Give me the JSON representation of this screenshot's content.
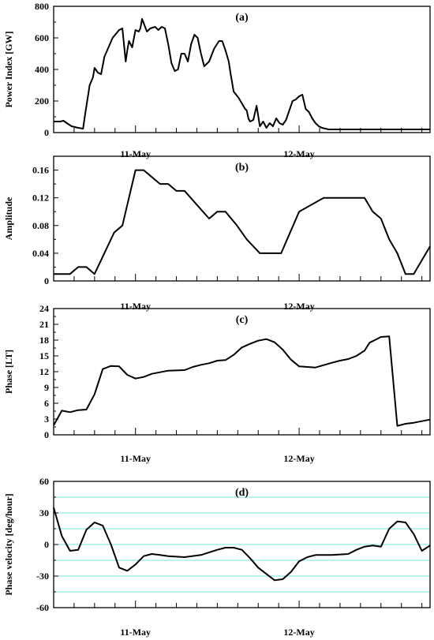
{
  "chart_data": [
    {
      "panel": "(a)",
      "type": "line",
      "ylabel": "Power Index [GW]",
      "ylim": [
        0,
        800
      ],
      "yticks": [
        0,
        200,
        400,
        600,
        800
      ],
      "xlim": [
        0,
        2.3
      ],
      "xticks": [
        {
          "x": 0.5,
          "label": "11-May"
        },
        {
          "x": 1.5,
          "label": "12-May"
        }
      ],
      "grid": false,
      "colors": {
        "line": "#000000",
        "frame": "#000000"
      },
      "series": [
        {
          "x": [
            0,
            0.04,
            0.06,
            0.08,
            0.11,
            0.15,
            0.18,
            0.19,
            0.22,
            0.24,
            0.25,
            0.27,
            0.29,
            0.31,
            0.36,
            0.4,
            0.42,
            0.44,
            0.45,
            0.46,
            0.48,
            0.5,
            0.52,
            0.53,
            0.54,
            0.57,
            0.59,
            0.62,
            0.64,
            0.66,
            0.68,
            0.7,
            0.72,
            0.74,
            0.76,
            0.78,
            0.8,
            0.82,
            0.84,
            0.86,
            0.88,
            0.9,
            0.92,
            0.95,
            0.98,
            1.01,
            1.03,
            1.05,
            1.07,
            1.08,
            1.1,
            1.13,
            1.17,
            1.18,
            1.19,
            1.2,
            1.22,
            1.24,
            1.26,
            1.28,
            1.3,
            1.32,
            1.34,
            1.36,
            1.38,
            1.4,
            1.42,
            1.44,
            1.46,
            1.48,
            1.5,
            1.52,
            1.54,
            1.56,
            1.58,
            1.6,
            1.62,
            1.64,
            1.66,
            1.68,
            1.7,
            1.71,
            1.72,
            1.74,
            1.76,
            1.8,
            1.9,
            2.0,
            2.1,
            2.2,
            2.3
          ],
          "y": [
            70,
            70,
            75,
            60,
            40,
            30,
            25,
            100,
            300,
            350,
            410,
            380,
            370,
            480,
            600,
            650,
            660,
            450,
            520,
            580,
            540,
            650,
            640,
            660,
            720,
            640,
            660,
            670,
            650,
            670,
            660,
            560,
            440,
            390,
            400,
            500,
            500,
            450,
            560,
            620,
            600,
            500,
            420,
            450,
            530,
            580,
            580,
            520,
            450,
            380,
            260,
            220,
            150,
            140,
            90,
            70,
            80,
            170,
            40,
            70,
            30,
            60,
            40,
            90,
            60,
            50,
            80,
            140,
            200,
            210,
            230,
            240,
            150,
            130,
            90,
            60,
            40,
            30,
            25,
            20,
            20,
            20,
            20,
            20,
            20,
            20,
            20,
            20,
            20,
            20,
            20
          ]
        }
      ]
    },
    {
      "panel": "(b)",
      "type": "line",
      "ylabel": "Amplitude",
      "ylim": [
        0,
        0.18
      ],
      "yticks": [
        0,
        0.04,
        0.08,
        0.12,
        0.16
      ],
      "ytick_labels": [
        "0",
        "0.04",
        "0.08",
        "0.12",
        "0.16"
      ],
      "xlim": [
        0,
        2.3
      ],
      "xticks": [
        {
          "x": 0.5,
          "label": "11-May"
        },
        {
          "x": 1.5,
          "label": "12-May"
        }
      ],
      "grid": false,
      "colors": {
        "line": "#000000",
        "frame": "#000000"
      },
      "series": [
        {
          "x": [
            0,
            0.1,
            0.15,
            0.2,
            0.25,
            0.37,
            0.42,
            0.5,
            0.55,
            0.65,
            0.7,
            0.75,
            0.8,
            0.95,
            1.0,
            1.05,
            1.12,
            1.18,
            1.26,
            1.39,
            1.5,
            1.65,
            1.8,
            1.9,
            1.95,
            2.0,
            2.05,
            2.1,
            2.15,
            2.2,
            2.3
          ],
          "y": [
            0.01,
            0.01,
            0.02,
            0.02,
            0.01,
            0.07,
            0.08,
            0.16,
            0.16,
            0.14,
            0.14,
            0.13,
            0.13,
            0.09,
            0.1,
            0.1,
            0.08,
            0.06,
            0.04,
            0.04,
            0.1,
            0.12,
            0.12,
            0.12,
            0.1,
            0.09,
            0.06,
            0.04,
            0.01,
            0.01,
            0.05
          ]
        }
      ]
    },
    {
      "panel": "(c)",
      "type": "line",
      "ylabel": "Phase [LT]",
      "ylim": [
        0,
        24
      ],
      "yticks": [
        0,
        3,
        6,
        9,
        12,
        15,
        18,
        21,
        24
      ],
      "xlim": [
        0,
        2.3
      ],
      "xticks": [
        {
          "x": 0.5,
          "label": "11-May"
        },
        {
          "x": 1.5,
          "label": "12-May"
        }
      ],
      "grid": false,
      "colors": {
        "line": "#000000",
        "frame": "#000000"
      },
      "series": [
        {
          "x": [
            0,
            0.05,
            0.1,
            0.15,
            0.2,
            0.25,
            0.3,
            0.35,
            0.4,
            0.45,
            0.5,
            0.55,
            0.6,
            0.7,
            0.8,
            0.85,
            0.9,
            0.95,
            1.0,
            1.05,
            1.1,
            1.15,
            1.2,
            1.25,
            1.3,
            1.35,
            1.4,
            1.45,
            1.5,
            1.6,
            1.7,
            1.75,
            1.8,
            1.85,
            1.9,
            1.93,
            2.0,
            2.05,
            2.1,
            2.15,
            2.2,
            2.3
          ],
          "y": [
            1.8,
            4.6,
            4.3,
            4.7,
            4.8,
            7.7,
            12.5,
            13.1,
            13.0,
            11.4,
            10.7,
            11.0,
            11.6,
            12.2,
            12.3,
            12.9,
            13.3,
            13.6,
            14.1,
            14.2,
            15.2,
            16.6,
            17.3,
            17.9,
            18.2,
            17.6,
            16.2,
            14.3,
            13.0,
            12.8,
            13.7,
            14.1,
            14.4,
            15.0,
            16.0,
            17.5,
            18.6,
            18.7,
            1.7,
            2.1,
            2.3,
            2.9
          ]
        }
      ]
    },
    {
      "panel": "(d)",
      "type": "line",
      "ylabel": "Phase velocity [deg/hour]",
      "ylim": [
        -60,
        60
      ],
      "yticks": [
        -60,
        -30,
        0,
        30,
        60
      ],
      "xlim": [
        0,
        2.3
      ],
      "xticks": [
        {
          "x": 0.5,
          "label": "11-May"
        },
        {
          "x": 1.5,
          "label": "12-May"
        }
      ],
      "grid": true,
      "grid_step": 15,
      "colors": {
        "line": "#000000",
        "frame": "#000000",
        "grid": "#7fdcea"
      },
      "series": [
        {
          "x": [
            0,
            0.05,
            0.1,
            0.15,
            0.2,
            0.25,
            0.3,
            0.35,
            0.4,
            0.45,
            0.5,
            0.55,
            0.6,
            0.65,
            0.7,
            0.8,
            0.9,
            1.0,
            1.05,
            1.1,
            1.15,
            1.2,
            1.25,
            1.3,
            1.35,
            1.4,
            1.45,
            1.5,
            1.55,
            1.6,
            1.7,
            1.8,
            1.85,
            1.9,
            1.95,
            2.0,
            2.05,
            2.1,
            2.15,
            2.2,
            2.25,
            2.3
          ],
          "y": [
            35,
            8,
            -6,
            -5,
            14,
            21,
            18,
            0,
            -22,
            -25,
            -19,
            -11,
            -9,
            -10,
            -11,
            -12,
            -10,
            -5,
            -3,
            -3,
            -5,
            -13,
            -22,
            -28,
            -34,
            -33,
            -26,
            -16,
            -12,
            -10,
            -10,
            -9,
            -5,
            -2,
            -1,
            -2,
            15,
            22,
            21,
            10,
            -6,
            -1
          ]
        }
      ]
    }
  ]
}
